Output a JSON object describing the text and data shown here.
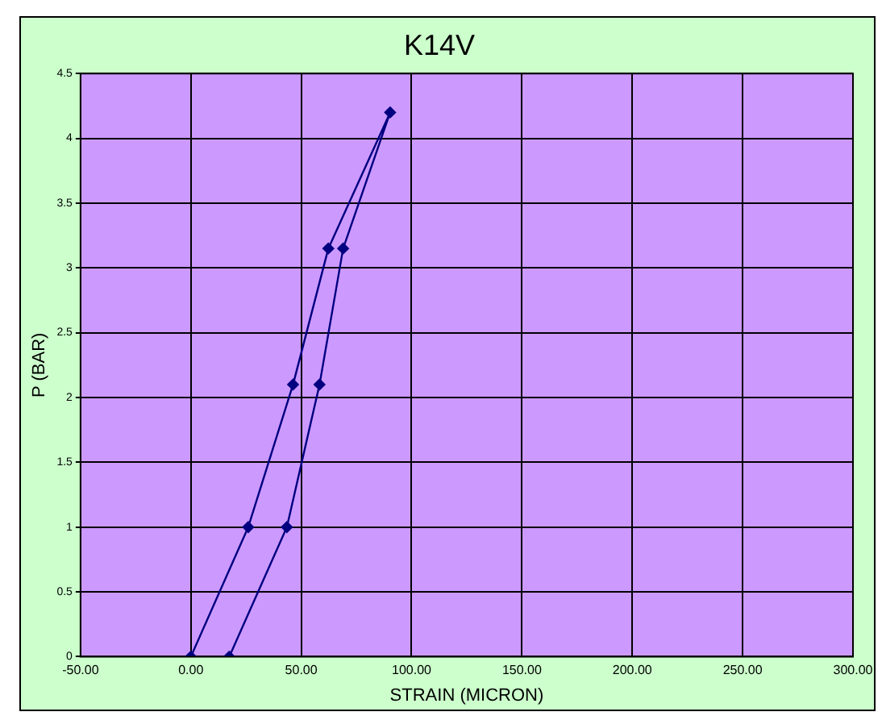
{
  "chart_data": {
    "type": "line",
    "title": "K14V",
    "xlabel": "STRAIN (MICRON)",
    "ylabel": "P (BAR)",
    "x": [
      0,
      26,
      46.3,
      62.3,
      90.3,
      69,
      58.3,
      43.5,
      17.4
    ],
    "series": [
      {
        "color": "#000080",
        "values": [
          0,
          1,
          2.1,
          3.15,
          4.2,
          3.15,
          2.1,
          1,
          0
        ]
      }
    ],
    "xlim": [
      -50,
      300
    ],
    "xticks": [
      {
        "value": -50,
        "label": "-50.00"
      },
      {
        "value": 0,
        "label": "0.00"
      },
      {
        "value": 50,
        "label": "50.00"
      },
      {
        "value": 100,
        "label": "100.00"
      },
      {
        "value": 150,
        "label": "150.00"
      },
      {
        "value": 200,
        "label": "200.00"
      },
      {
        "value": 250,
        "label": "250.00"
      },
      {
        "value": 300,
        "label": "300.00"
      }
    ],
    "ylim": [
      0,
      4.5
    ],
    "yticks": [
      0,
      0.5,
      1,
      1.5,
      2,
      2.5,
      3,
      3.5,
      4,
      4.5
    ],
    "grid": true,
    "legend": false,
    "marker": "diamond",
    "line_style": "solid"
  }
}
